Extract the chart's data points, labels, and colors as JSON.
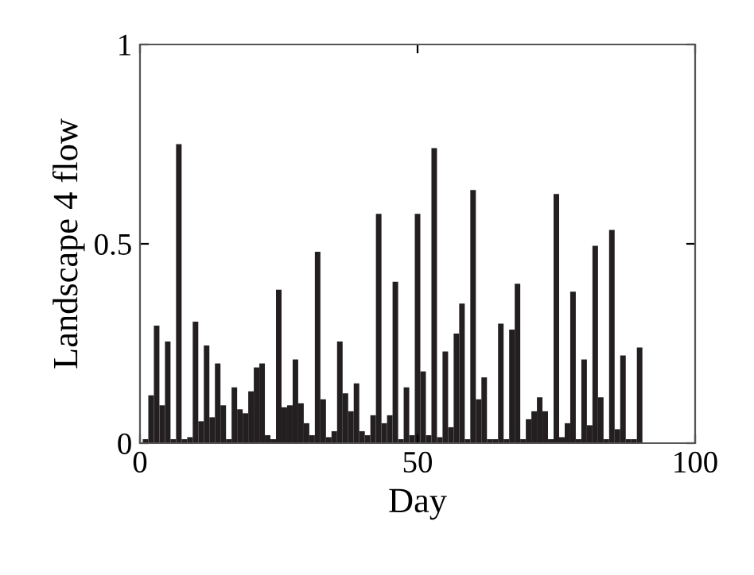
{
  "chart_data": {
    "type": "bar",
    "xlabel": "Day",
    "ylabel": "Landscape 4 flow",
    "color": "#231f20",
    "x": [
      1,
      2,
      3,
      4,
      5,
      6,
      7,
      8,
      9,
      10,
      11,
      12,
      13,
      14,
      15,
      16,
      17,
      18,
      19,
      20,
      21,
      22,
      23,
      24,
      25,
      26,
      27,
      28,
      29,
      30,
      31,
      32,
      33,
      34,
      35,
      36,
      37,
      38,
      39,
      40,
      41,
      42,
      43,
      44,
      45,
      46,
      47,
      48,
      49,
      50,
      51,
      52,
      53,
      54,
      55,
      56,
      57,
      58,
      59,
      60,
      61,
      62,
      63,
      64,
      65,
      66,
      67,
      68,
      69,
      70,
      71,
      72,
      73,
      74,
      75,
      76,
      77,
      78,
      79,
      80,
      81,
      82,
      83,
      84,
      85,
      86,
      87,
      88,
      89,
      90
    ],
    "values": [
      0.01,
      0.12,
      0.295,
      0.095,
      0.255,
      0.01,
      0.75,
      0.01,
      0.015,
      0.305,
      0.055,
      0.245,
      0.065,
      0.2,
      0.095,
      0.01,
      0.14,
      0.085,
      0.075,
      0.13,
      0.19,
      0.2,
      0.02,
      0.01,
      0.385,
      0.09,
      0.095,
      0.21,
      0.1,
      0.05,
      0.02,
      0.48,
      0.11,
      0.015,
      0.03,
      0.255,
      0.125,
      0.08,
      0.15,
      0.03,
      0.02,
      0.07,
      0.575,
      0.05,
      0.07,
      0.405,
      0.01,
      0.14,
      0.02,
      0.575,
      0.18,
      0.02,
      0.74,
      0.015,
      0.23,
      0.04,
      0.275,
      0.35,
      0.01,
      0.635,
      0.11,
      0.165,
      0.01,
      0.01,
      0.3,
      0.01,
      0.285,
      0.4,
      0.01,
      0.06,
      0.08,
      0.115,
      0.08,
      0.01,
      0.625,
      0.015,
      0.05,
      0.38,
      0.01,
      0.21,
      0.045,
      0.495,
      0.115,
      0.01,
      0.535,
      0.035,
      0.22,
      0.01,
      0.01,
      0.24
    ],
    "xlim": [
      0,
      100
    ],
    "xticks": [
      0,
      50,
      100
    ],
    "ylim": [
      0,
      1
    ],
    "yticks": [
      0,
      0.5,
      1
    ],
    "grid": false,
    "legend": false
  }
}
